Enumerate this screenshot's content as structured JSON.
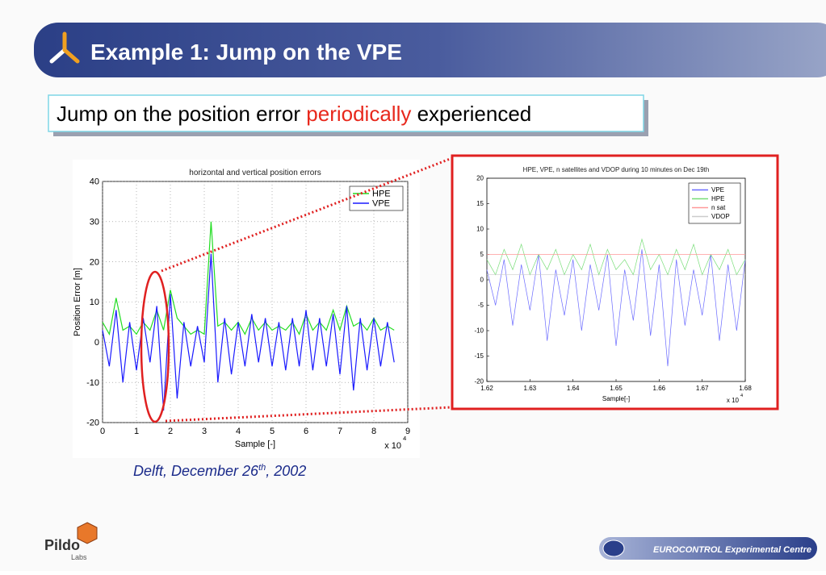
{
  "header": {
    "title": "Example 1: Jump on the VPE"
  },
  "subtitle": {
    "before": "Jump on the position error",
    "highlight": "periodically",
    "after": "experienced"
  },
  "caption": {
    "text": "Delft, December 26",
    "sup": "th",
    "tail": ", 2002"
  },
  "logo": {
    "name": "Pildo",
    "sub": "Labs"
  },
  "footer": {
    "label": "EUROCONTROL Experimental Centre"
  },
  "chart_data": [
    {
      "type": "line",
      "title": "horizontal and vertical position errors",
      "xlabel": "Sample [-]",
      "ylabel": "Position Error [m]",
      "x_multiplier": "x 10",
      "x_multiplier_exp": "4",
      "x": [
        0,
        0.2,
        0.4,
        0.6,
        0.8,
        1,
        1.2,
        1.4,
        1.6,
        1.8,
        2,
        2.2,
        2.4,
        2.6,
        2.8,
        3,
        3.2,
        3.4,
        3.6,
        3.8,
        4,
        4.2,
        4.4,
        4.6,
        4.8,
        5,
        5.2,
        5.4,
        5.6,
        5.8,
        6,
        6.2,
        6.4,
        6.6,
        6.8,
        7,
        7.2,
        7.4,
        7.6,
        7.8,
        8,
        8.2,
        8.4,
        8.6
      ],
      "series": [
        {
          "name": "HPE",
          "color": "#22dd22",
          "values": [
            5,
            2,
            11,
            3,
            4,
            2,
            5,
            3,
            8,
            3,
            13,
            6,
            4,
            2,
            3,
            2,
            30,
            4,
            5,
            3,
            5,
            2,
            6,
            3,
            5,
            3,
            4,
            3,
            5,
            2,
            7,
            3,
            5,
            3,
            8,
            3,
            9,
            4,
            5,
            3,
            6,
            3,
            4,
            3
          ]
        },
        {
          "name": "VPE",
          "color": "#1a1aff",
          "values": [
            3,
            -6,
            8,
            -10,
            5,
            -7,
            6,
            -5,
            9,
            -17,
            12,
            -14,
            5,
            -6,
            4,
            -5,
            22,
            -10,
            6,
            -8,
            5,
            -6,
            7,
            -5,
            6,
            -6,
            5,
            -7,
            6,
            -6,
            8,
            -7,
            6,
            -6,
            7,
            -8,
            9,
            -12,
            6,
            -7,
            6,
            -6,
            5,
            -5
          ]
        }
      ],
      "xlim": [
        0,
        9
      ],
      "ylim": [
        -20,
        40
      ],
      "xticks": [
        0,
        1,
        2,
        3,
        4,
        5,
        6,
        7,
        8,
        9
      ],
      "yticks": [
        -20,
        -10,
        0,
        10,
        20,
        30,
        40
      ],
      "grid": true,
      "legend": "upper right"
    },
    {
      "type": "line",
      "title": "HPE, VPE, n satellites and VDOP during 10 minutes on Dec 19th",
      "xlabel": "Sample[-]",
      "x_multiplier": "x 10",
      "x_multiplier_exp": "4",
      "x": [
        1.62,
        1.622,
        1.624,
        1.626,
        1.628,
        1.63,
        1.632,
        1.634,
        1.636,
        1.638,
        1.64,
        1.642,
        1.644,
        1.646,
        1.648,
        1.65,
        1.652,
        1.654,
        1.656,
        1.658,
        1.66,
        1.662,
        1.664,
        1.666,
        1.668,
        1.67,
        1.672,
        1.674,
        1.676,
        1.678,
        1.68
      ],
      "series": [
        {
          "name": "VPE",
          "color": "#6a6aff",
          "values": [
            2,
            -5,
            4,
            -9,
            3,
            -6,
            5,
            -12,
            2,
            -7,
            4,
            -10,
            3,
            -6,
            5,
            -13,
            2,
            -8,
            6,
            -11,
            3,
            -17,
            4,
            -9,
            2,
            -7,
            5,
            -12,
            3,
            -10,
            4
          ]
        },
        {
          "name": "HPE",
          "color": "#77dd77",
          "values": [
            4,
            1,
            6,
            2,
            7,
            1,
            5,
            2,
            6,
            1,
            5,
            2,
            7,
            1,
            6,
            2,
            4,
            1,
            8,
            2,
            5,
            1,
            6,
            2,
            7,
            1,
            5,
            2,
            6,
            1,
            4
          ]
        },
        {
          "name": "n sat",
          "color": "#ff9999",
          "values": [
            5,
            5,
            5,
            5,
            5,
            5,
            5,
            5,
            5,
            5,
            5,
            5,
            5,
            5,
            5,
            5,
            5,
            5,
            5,
            5,
            5,
            5,
            5,
            5,
            5,
            5,
            5,
            5,
            5,
            5,
            5
          ]
        },
        {
          "name": "VDOP",
          "color": "#cccccc",
          "values": [
            1,
            1,
            1,
            1,
            1,
            1,
            1,
            1,
            1,
            1,
            1,
            1,
            1,
            1,
            1,
            1,
            1,
            1,
            1,
            1,
            1,
            1,
            1,
            1,
            1,
            1,
            1,
            1,
            1,
            1,
            1
          ]
        }
      ],
      "xlim": [
        1.62,
        1.68
      ],
      "ylim": [
        -20,
        20
      ],
      "xticks": [
        1.62,
        1.63,
        1.64,
        1.65,
        1.66,
        1.67,
        1.68
      ],
      "yticks": [
        -20,
        -15,
        -10,
        -5,
        0,
        5,
        10,
        15,
        20
      ],
      "grid": false,
      "legend": "upper right"
    }
  ]
}
